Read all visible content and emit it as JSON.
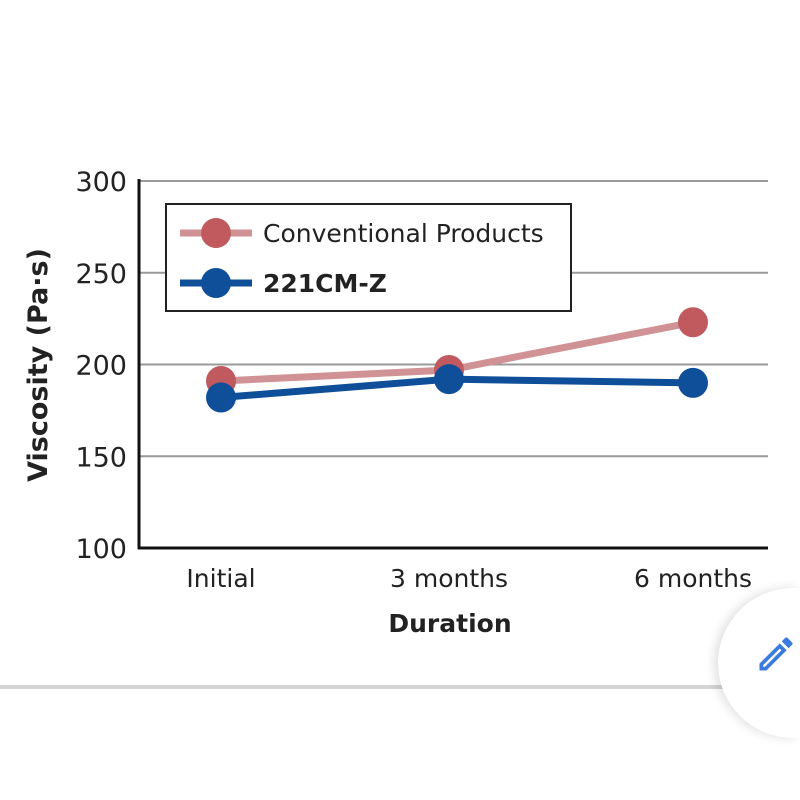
{
  "chart_data": {
    "type": "line",
    "title": "",
    "xlabel": "Duration",
    "ylabel": "Viscosity (Pa·s)",
    "categories": [
      "Initial",
      "3 months",
      "6 months"
    ],
    "ylim": [
      100,
      300
    ],
    "yticks": [
      100,
      150,
      200,
      250,
      300
    ],
    "ytick_labels": [
      "100",
      "150",
      "200",
      "250",
      "300"
    ],
    "grid": true,
    "legend_position": "top-left",
    "series": [
      {
        "name": "Conventional Products",
        "color": "#d09294",
        "marker_color": "#c05a5e",
        "values": [
          191,
          197,
          223
        ]
      },
      {
        "name": "221CM-Z",
        "color": "#0f4f9a",
        "marker_color": "#0f4f9a",
        "values": [
          182,
          192,
          190
        ]
      }
    ]
  },
  "ui": {
    "edit_button_icon": "pencil-icon"
  }
}
